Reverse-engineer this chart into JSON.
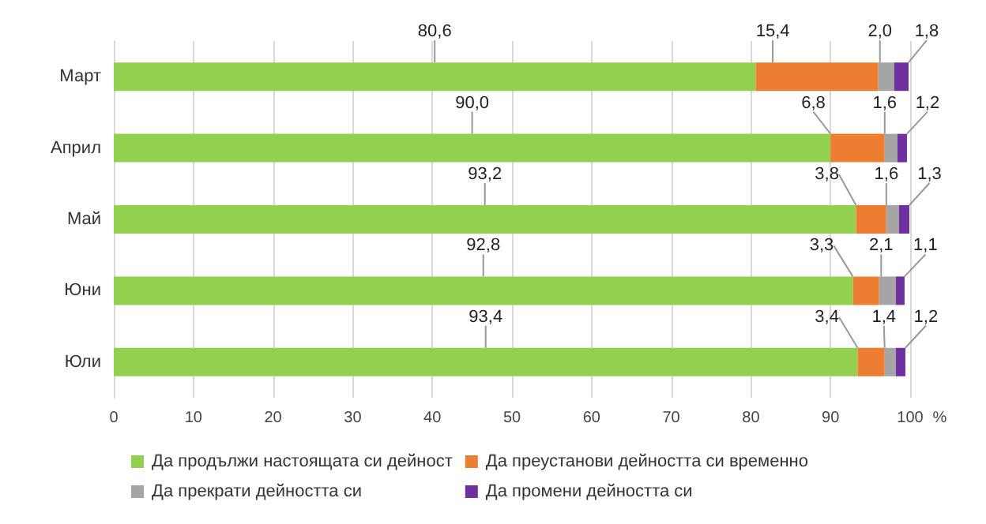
{
  "chart_data": {
    "type": "bar",
    "orientation": "horizontal",
    "stacked": true,
    "xlabel": "%",
    "categories": [
      "Март",
      "Април",
      "Май",
      "Юни",
      "Юли"
    ],
    "series": [
      {
        "name": "Да продължи настоящата си дейност",
        "color": "#92d050",
        "values": [
          80.6,
          90.0,
          93.2,
          92.8,
          93.4
        ],
        "value_labels": [
          "80,6",
          "90,0",
          "93,2",
          "92,8",
          "93,4"
        ]
      },
      {
        "name": "Да преустанови дейността си временно",
        "color": "#ed7d31",
        "values": [
          15.4,
          6.8,
          3.8,
          3.3,
          3.4
        ],
        "value_labels": [
          "15,4",
          "6,8",
          "3,8",
          "3,3",
          "3,4"
        ]
      },
      {
        "name": "Да прекрати дейността си",
        "color": "#a5a5a5",
        "values": [
          2.0,
          1.6,
          1.6,
          2.1,
          1.4
        ],
        "value_labels": [
          "2,0",
          "1,6",
          "1,6",
          "2,1",
          "1,4"
        ]
      },
      {
        "name": "Да промени дейността си",
        "color": "#7030a0",
        "values": [
          1.8,
          1.2,
          1.3,
          1.1,
          1.2
        ],
        "value_labels": [
          "1,8",
          "1,2",
          "1,3",
          "1,1",
          "1,2"
        ]
      }
    ],
    "xlim": [
      0,
      100
    ],
    "xticks": [
      0,
      10,
      20,
      30,
      40,
      50,
      60,
      70,
      80,
      90,
      100
    ],
    "grid": "x",
    "legend": "bottom"
  }
}
